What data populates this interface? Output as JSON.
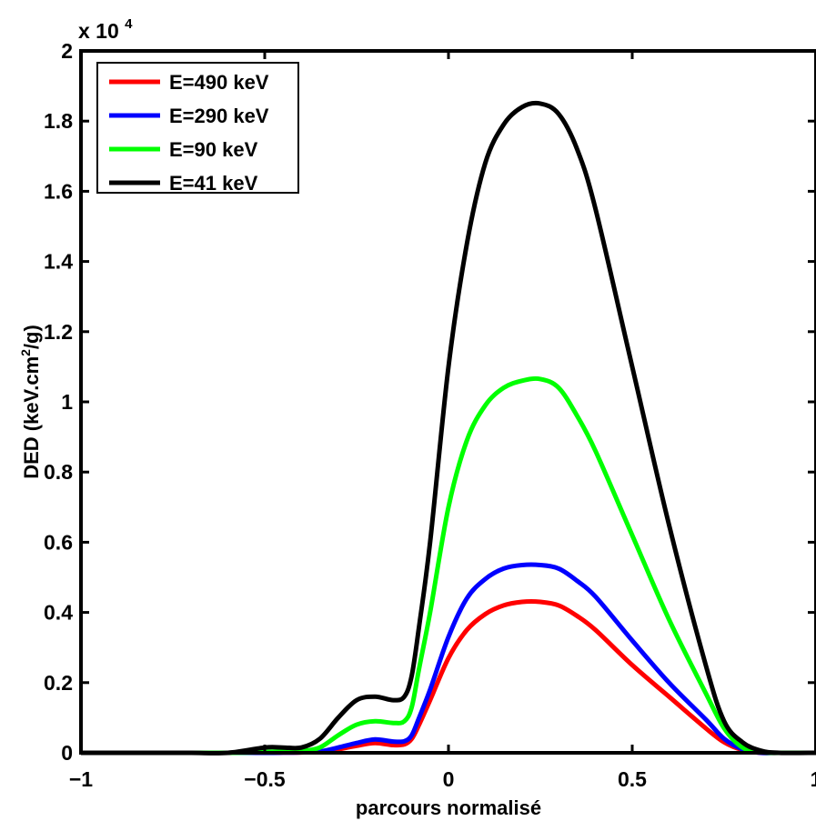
{
  "chart_data": {
    "type": "line",
    "title": "",
    "xlabel": "parcours normalisé",
    "ylabel": "DED (keV.cm²/g)",
    "ylabel_parts": {
      "before": "DED (keV.cm",
      "sup": "2",
      "after": "/g)"
    },
    "y_multiplier": {
      "prefix": "x 10",
      "exponent": "4"
    },
    "xlim": [
      -1,
      1
    ],
    "ylim": [
      0,
      20000
    ],
    "xticks": [
      -1,
      -0.5,
      0,
      0.5,
      1
    ],
    "xtick_labels": [
      "−1",
      "−0.5",
      "0",
      "0.5",
      "1"
    ],
    "yticks": [
      0,
      2000,
      4000,
      6000,
      8000,
      10000,
      12000,
      14000,
      16000,
      18000,
      20000
    ],
    "ytick_labels": [
      "0",
      "0.2",
      "0.4",
      "0.6",
      "0.8",
      "1",
      "1.2",
      "1.4",
      "1.6",
      "1.8",
      "2"
    ],
    "grid": false,
    "legend_position": "top-left",
    "x": [
      -1,
      -0.9,
      -0.8,
      -0.7,
      -0.6,
      -0.5,
      -0.45,
      -0.4,
      -0.35,
      -0.3,
      -0.25,
      -0.2,
      -0.15,
      -0.12,
      -0.1,
      -0.08,
      -0.05,
      0,
      0.05,
      0.1,
      0.15,
      0.2,
      0.25,
      0.3,
      0.35,
      0.4,
      0.5,
      0.6,
      0.7,
      0.75,
      0.8,
      0.85,
      0.9,
      1
    ],
    "series": [
      {
        "name": "E=490 keV",
        "color": "#ff0000",
        "values": [
          0,
          0,
          0,
          0,
          0,
          0,
          5,
          10,
          30,
          100,
          200,
          280,
          220,
          240,
          400,
          800,
          1500,
          2700,
          3500,
          3950,
          4200,
          4300,
          4300,
          4200,
          3900,
          3500,
          2500,
          1600,
          700,
          300,
          80,
          0,
          0,
          0
        ]
      },
      {
        "name": "E=290 keV",
        "color": "#0000ff",
        "values": [
          0,
          0,
          0,
          0,
          0,
          0,
          5,
          12,
          40,
          150,
          280,
          380,
          320,
          330,
          500,
          1000,
          1800,
          3300,
          4400,
          4950,
          5250,
          5350,
          5350,
          5250,
          4900,
          4450,
          3200,
          2000,
          950,
          400,
          100,
          0,
          0,
          0
        ]
      },
      {
        "name": "E=90 keV",
        "color": "#00ff00",
        "values": [
          0,
          0,
          0,
          0,
          0,
          20,
          40,
          50,
          150,
          500,
          800,
          900,
          850,
          900,
          1300,
          2400,
          4000,
          7000,
          8900,
          9900,
          10400,
          10600,
          10650,
          10400,
          9600,
          8600,
          6200,
          3800,
          1700,
          700,
          150,
          20,
          0,
          0
        ]
      },
      {
        "name": "E=41 keV",
        "color": "#000000",
        "values": [
          0,
          0,
          0,
          0,
          0,
          150,
          150,
          150,
          400,
          1000,
          1500,
          1600,
          1500,
          1600,
          2200,
          3600,
          6000,
          11000,
          14500,
          16800,
          17900,
          18400,
          18500,
          18200,
          17200,
          15500,
          11000,
          6500,
          2500,
          900,
          300,
          60,
          0,
          0
        ]
      }
    ]
  }
}
